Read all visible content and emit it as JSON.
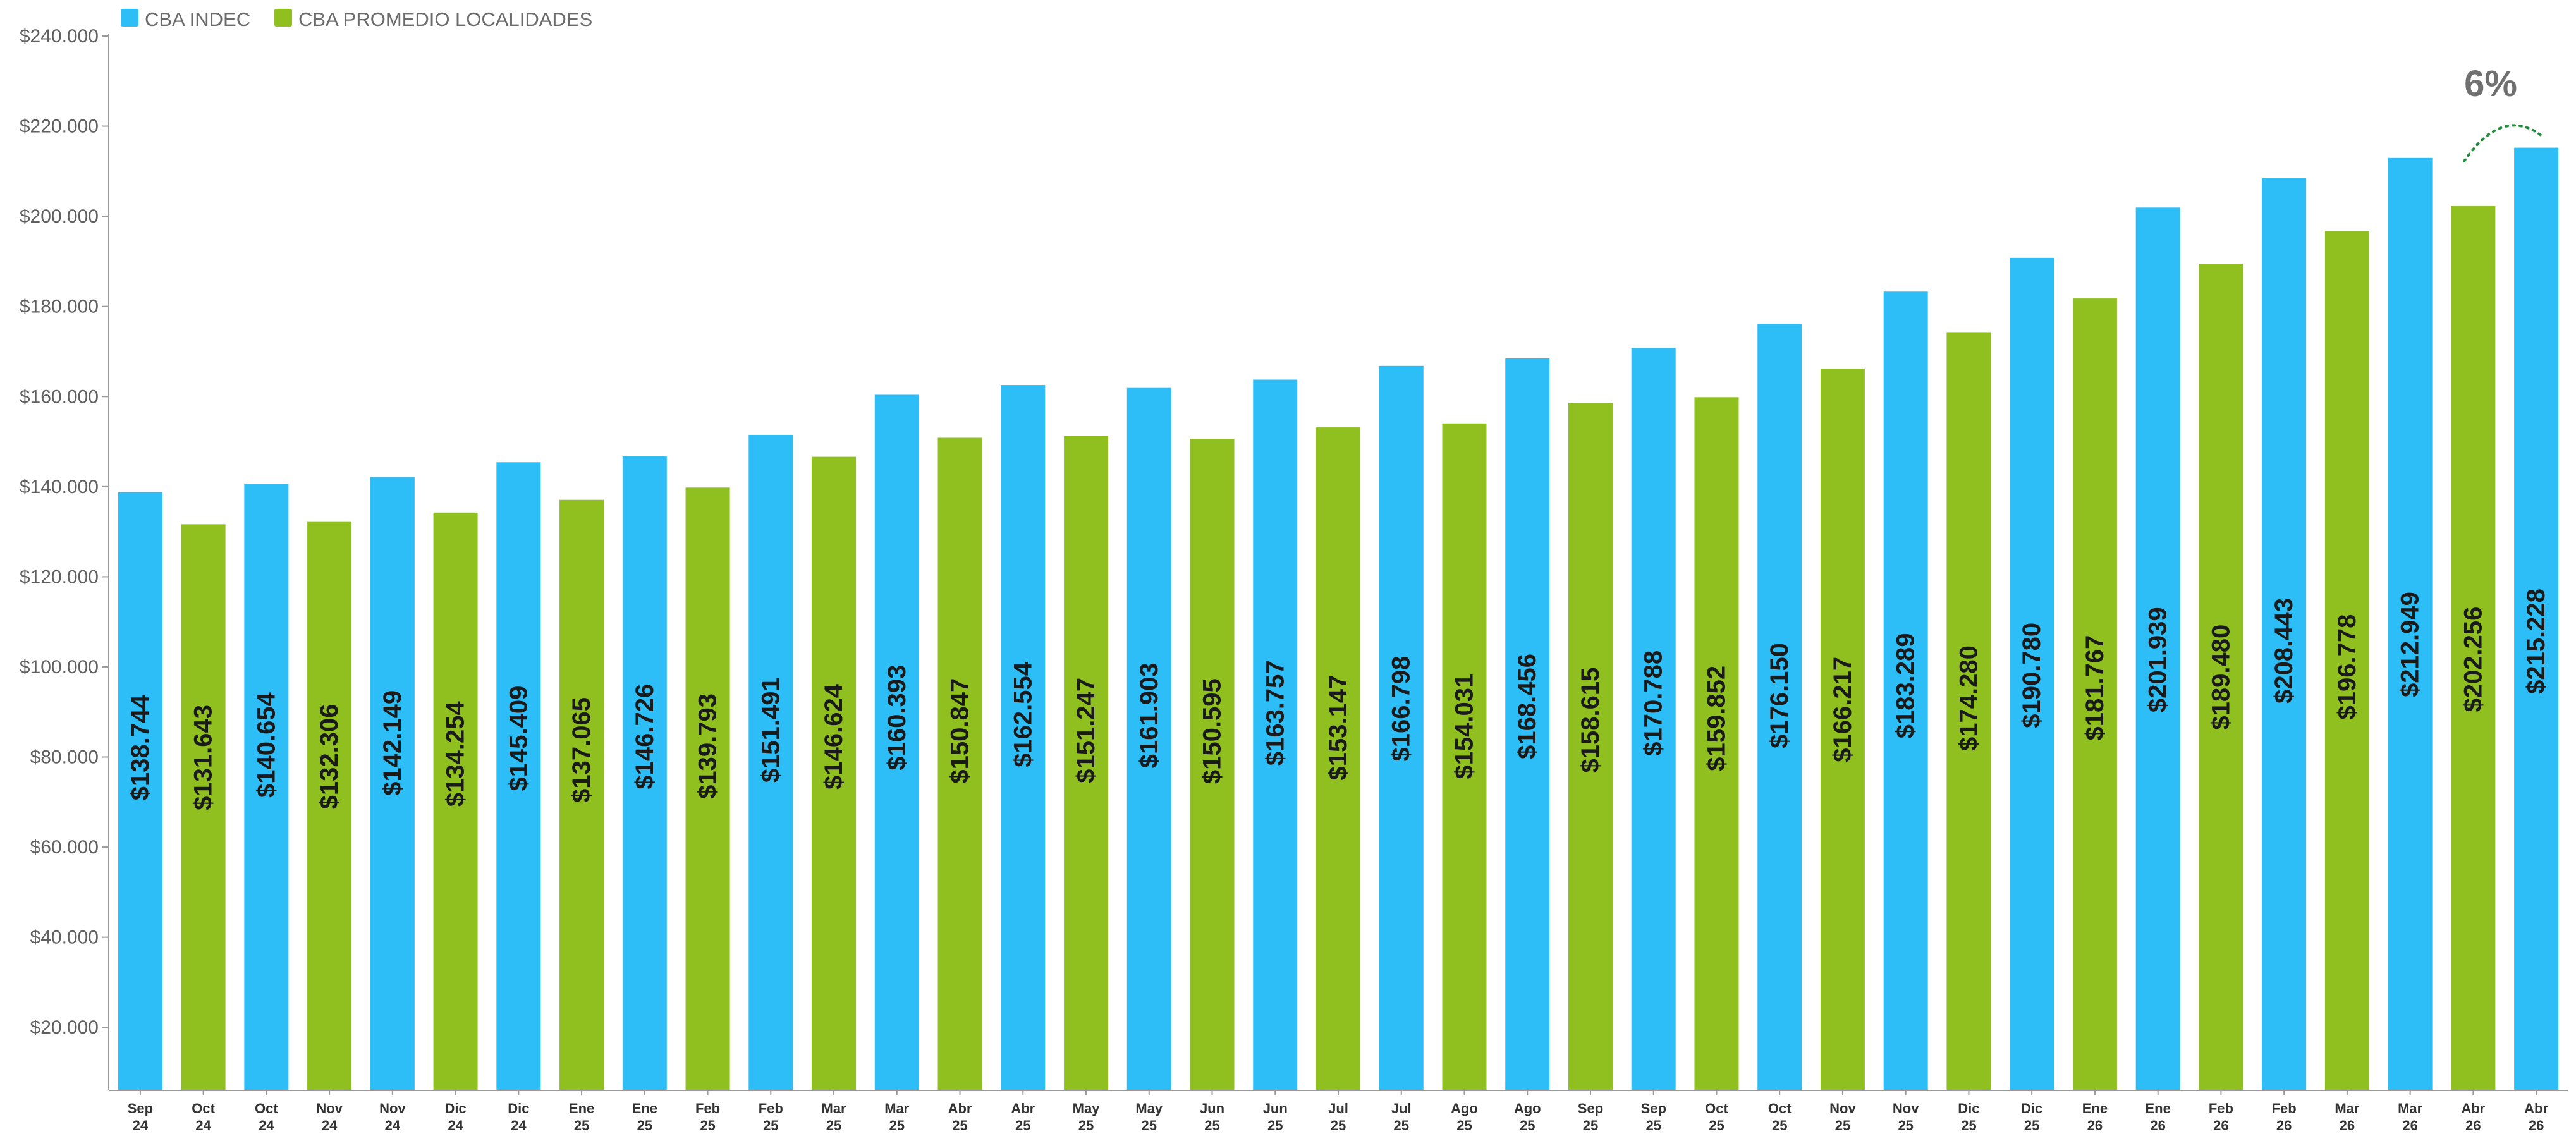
{
  "chart_data": {
    "type": "bar",
    "title": "",
    "xlabel": "",
    "ylabel": "",
    "ylim": [
      6000,
      240000
    ],
    "yticks": [
      {
        "value": 20000,
        "label": "$20.000"
      },
      {
        "value": 40000,
        "label": "$40.000"
      },
      {
        "value": 60000,
        "label": "$60.000"
      },
      {
        "value": 80000,
        "label": "$80.000"
      },
      {
        "value": 100000,
        "label": "$100.000"
      },
      {
        "value": 120000,
        "label": "$120.000"
      },
      {
        "value": 140000,
        "label": "$140.000"
      },
      {
        "value": 160000,
        "label": "$160.000"
      },
      {
        "value": 180000,
        "label": "$180.000"
      },
      {
        "value": 200000,
        "label": "$200.000"
      },
      {
        "value": 220000,
        "label": "$220.000"
      },
      {
        "value": 240000,
        "label": "$240.000"
      }
    ],
    "grid": false,
    "legend_position": "top-left",
    "legend": [
      {
        "name": "CBA INDEC",
        "color": "#2ebef7"
      },
      {
        "name": "CBA PROMEDIO LOCALIDADES",
        "color": "#8fc01f"
      }
    ],
    "annotation": {
      "text": "6%",
      "color": "#1e8c3a"
    },
    "bars": [
      {
        "month": "Sep",
        "year": "24",
        "series": "CBA INDEC",
        "value": 138744,
        "label": "$138.744"
      },
      {
        "month": "Oct",
        "year": "24",
        "series": "CBA PROMEDIO LOCALIDADES",
        "value": 131643,
        "label": "$131.643"
      },
      {
        "month": "Oct",
        "year": "24",
        "series": "CBA INDEC",
        "value": 140654,
        "label": "$140.654"
      },
      {
        "month": "Nov",
        "year": "24",
        "series": "CBA PROMEDIO LOCALIDADES",
        "value": 132306,
        "label": "$132.306"
      },
      {
        "month": "Nov",
        "year": "24",
        "series": "CBA INDEC",
        "value": 142149,
        "label": "$142.149"
      },
      {
        "month": "Dic",
        "year": "24",
        "series": "CBA PROMEDIO LOCALIDADES",
        "value": 134254,
        "label": "$134.254"
      },
      {
        "month": "Dic",
        "year": "24",
        "series": "CBA INDEC",
        "value": 145409,
        "label": "$145.409"
      },
      {
        "month": "Ene",
        "year": "25",
        "series": "CBA PROMEDIO LOCALIDADES",
        "value": 137065,
        "label": "$137.065"
      },
      {
        "month": "Ene",
        "year": "25",
        "series": "CBA INDEC",
        "value": 146726,
        "label": "$146.726"
      },
      {
        "month": "Feb",
        "year": "25",
        "series": "CBA PROMEDIO LOCALIDADES",
        "value": 139793,
        "label": "$139.793"
      },
      {
        "month": "Feb",
        "year": "25",
        "series": "CBA INDEC",
        "value": 151491,
        "label": "$151.491"
      },
      {
        "month": "Mar",
        "year": "25",
        "series": "CBA PROMEDIO LOCALIDADES",
        "value": 146624,
        "label": "$146.624"
      },
      {
        "month": "Mar",
        "year": "25",
        "series": "CBA INDEC",
        "value": 160393,
        "label": "$160.393"
      },
      {
        "month": "Abr",
        "year": "25",
        "series": "CBA PROMEDIO LOCALIDADES",
        "value": 150847,
        "label": "$150.847"
      },
      {
        "month": "Abr",
        "year": "25",
        "series": "CBA INDEC",
        "value": 162554,
        "label": "$162.554"
      },
      {
        "month": "May",
        "year": "25",
        "series": "CBA PROMEDIO LOCALIDADES",
        "value": 151247,
        "label": "$151.247"
      },
      {
        "month": "May",
        "year": "25",
        "series": "CBA INDEC",
        "value": 161903,
        "label": "$161.903"
      },
      {
        "month": "Jun",
        "year": "25",
        "series": "CBA PROMEDIO LOCALIDADES",
        "value": 150595,
        "label": "$150.595"
      },
      {
        "month": "Jun",
        "year": "25",
        "series": "CBA INDEC",
        "value": 163757,
        "label": "$163.757"
      },
      {
        "month": "Jul",
        "year": "25",
        "series": "CBA PROMEDIO LOCALIDADES",
        "value": 153147,
        "label": "$153.147"
      },
      {
        "month": "Jul",
        "year": "25",
        "series": "CBA INDEC",
        "value": 166798,
        "label": "$166.798"
      },
      {
        "month": "Ago",
        "year": "25",
        "series": "CBA PROMEDIO LOCALIDADES",
        "value": 154031,
        "label": "$154.031"
      },
      {
        "month": "Ago",
        "year": "25",
        "series": "CBA INDEC",
        "value": 168456,
        "label": "$168.456"
      },
      {
        "month": "Sep",
        "year": "25",
        "series": "CBA PROMEDIO LOCALIDADES",
        "value": 158615,
        "label": "$158.615"
      },
      {
        "month": "Sep",
        "year": "25",
        "series": "CBA INDEC",
        "value": 170788,
        "label": "$170.788"
      },
      {
        "month": "Oct",
        "year": "25",
        "series": "CBA PROMEDIO LOCALIDADES",
        "value": 159852,
        "label": "$159.852"
      },
      {
        "month": "Oct",
        "year": "25",
        "series": "CBA INDEC",
        "value": 176150,
        "label": "$176.150"
      },
      {
        "month": "Nov",
        "year": "25",
        "series": "CBA PROMEDIO LOCALIDADES",
        "value": 166217,
        "label": "$166.217"
      },
      {
        "month": "Nov",
        "year": "25",
        "series": "CBA INDEC",
        "value": 183289,
        "label": "$183.289"
      },
      {
        "month": "Dic",
        "year": "25",
        "series": "CBA PROMEDIO LOCALIDADES",
        "value": 174280,
        "label": "$174.280"
      },
      {
        "month": "Dic",
        "year": "25",
        "series": "CBA INDEC",
        "value": 190780,
        "label": "$190.780"
      },
      {
        "month": "Ene",
        "year": "26",
        "series": "CBA PROMEDIO LOCALIDADES",
        "value": 181767,
        "label": "$181.767"
      },
      {
        "month": "Ene",
        "year": "26",
        "series": "CBA INDEC",
        "value": 201939,
        "label": "$201.939"
      },
      {
        "month": "Feb",
        "year": "26",
        "series": "CBA PROMEDIO LOCALIDADES",
        "value": 189480,
        "label": "$189.480"
      },
      {
        "month": "Feb",
        "year": "26",
        "series": "CBA INDEC",
        "value": 208443,
        "label": "$208.443"
      },
      {
        "month": "Mar",
        "year": "26",
        "series": "CBA PROMEDIO LOCALIDADES",
        "value": 196778,
        "label": "$196.778"
      },
      {
        "month": "Mar",
        "year": "26",
        "series": "CBA INDEC",
        "value": 212949,
        "label": "$212.949"
      },
      {
        "month": "Abr",
        "year": "26",
        "series": "CBA PROMEDIO LOCALIDADES",
        "value": 202256,
        "label": "$202.256"
      },
      {
        "month": "Abr",
        "year": "26",
        "series": "CBA INDEC",
        "value": 215228,
        "label": "$215.228"
      }
    ]
  }
}
